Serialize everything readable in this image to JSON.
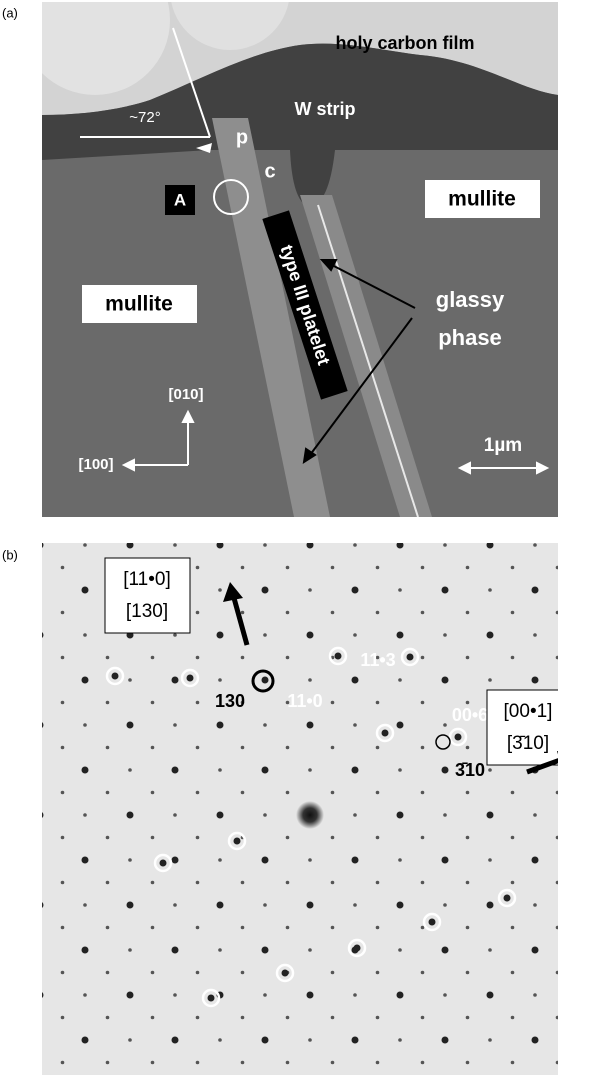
{
  "panel_a": {
    "label": "(a)",
    "holy_carbon_film": "holy carbon film",
    "w_strip": "W strip",
    "angle": "~72°",
    "p": "p",
    "c": "c",
    "site": "A",
    "mullite_right": "mullite",
    "mullite_left": "mullite",
    "platelet": "type III platelet",
    "glassy_phase": [
      "glassy",
      "phase"
    ],
    "direction_up": "[010]",
    "direction_left": "[100]",
    "scale_bar": "1µm"
  },
  "panel_b": {
    "label": "(b)",
    "zone_up": [
      "[11•0]",
      "[130]"
    ],
    "zone_right": [
      "[00•1]",
      "[3̄10]"
    ],
    "spot_labels": [
      "130",
      "11•0",
      "11•3",
      "00•6",
      "3̄10"
    ]
  }
}
